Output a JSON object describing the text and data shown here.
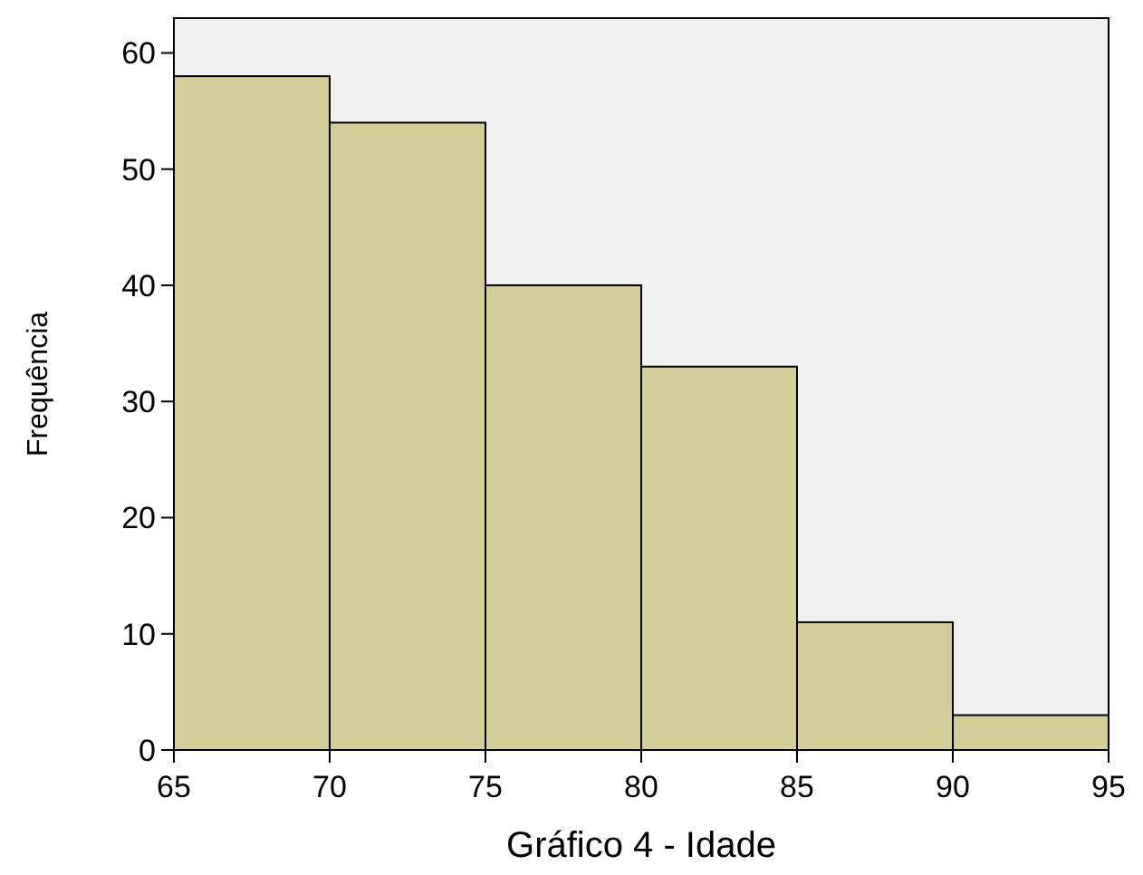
{
  "chart_data": {
    "type": "histogram",
    "xlabel": "Gráfico 4 - Idade",
    "ylabel": "Frequência",
    "bins": [
      65,
      70,
      75,
      80,
      85,
      90,
      95
    ],
    "values": [
      58,
      54,
      40,
      33,
      11,
      3
    ],
    "color": "#d3ce97",
    "xlim": [
      65,
      95
    ],
    "xticks": [
      65,
      70,
      75,
      80,
      85,
      90,
      95
    ],
    "ylim": [
      0,
      63
    ],
    "yticks": [
      0,
      10,
      20,
      30,
      40,
      50,
      60
    ],
    "grid": false
  }
}
